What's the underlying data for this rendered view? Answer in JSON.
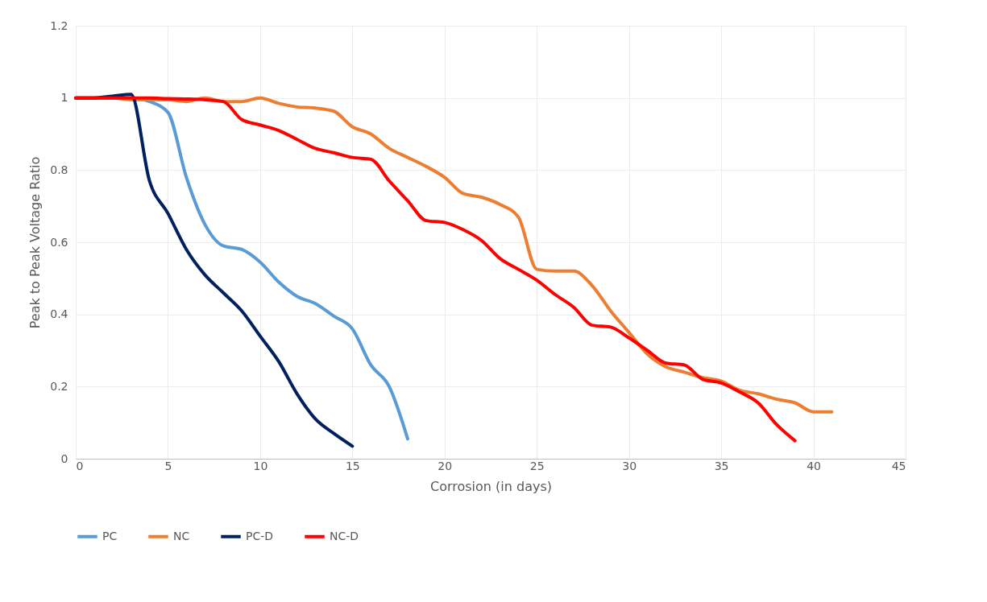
{
  "chart_data": {
    "type": "line",
    "xlabel": "Corrosion (in days)",
    "ylabel": "Peak to Peak Voltage Ratio",
    "xlim": [
      0,
      45
    ],
    "xticks": [
      0,
      5,
      10,
      15,
      20,
      25,
      30,
      35,
      40,
      45
    ],
    "ylim": [
      0,
      1.2
    ],
    "yticks": [
      0,
      0.2,
      0.4,
      0.6,
      0.8,
      1,
      1.2
    ],
    "grid": true,
    "legend": "bottom",
    "line_style": "solid",
    "marker": "none",
    "series": [
      {
        "name": "PC",
        "color": "#5b9bd5",
        "x": [
          0,
          1,
          2,
          3,
          4,
          5,
          6,
          7,
          8,
          9,
          10,
          11,
          12,
          13,
          14,
          15,
          16,
          17,
          18
        ],
        "values": [
          1,
          1,
          1,
          1,
          0.99,
          0.96,
          0.78,
          0.65,
          0.59,
          0.58,
          0.545,
          0.49,
          0.45,
          0.43,
          0.395,
          0.36,
          0.26,
          0.2,
          0.055
        ]
      },
      {
        "name": "NC",
        "color": "#ed7d31",
        "x": [
          0,
          1,
          2,
          3,
          4,
          5,
          6,
          7,
          8,
          9,
          10,
          11,
          12,
          13,
          14,
          15,
          16,
          17,
          18,
          19,
          20,
          21,
          22,
          23,
          24,
          25,
          26,
          27,
          28,
          29,
          30,
          31,
          32,
          33,
          34,
          35,
          36,
          37,
          38,
          39,
          40,
          41
        ],
        "values": [
          1,
          1,
          1,
          0.995,
          0.995,
          0.995,
          0.99,
          1,
          0.99,
          0.99,
          1,
          0.985,
          0.975,
          0.972,
          0.963,
          0.92,
          0.9,
          0.86,
          0.835,
          0.81,
          0.78,
          0.735,
          0.725,
          0.705,
          0.67,
          0.525,
          0.52,
          0.52,
          0.48,
          0.41,
          0.35,
          0.29,
          0.255,
          0.24,
          0.225,
          0.215,
          0.19,
          0.18,
          0.165,
          0.155,
          0.13,
          0.13
        ]
      },
      {
        "name": "PC-D",
        "color": "#002060",
        "x": [
          0,
          1,
          2,
          3,
          4,
          5,
          6,
          7,
          8,
          9,
          10,
          11,
          12,
          13,
          14,
          15
        ],
        "values": [
          1,
          1,
          1.005,
          1.01,
          0.77,
          0.68,
          0.58,
          0.51,
          0.46,
          0.41,
          0.34,
          0.27,
          0.18,
          0.11,
          0.07,
          0.035
        ]
      },
      {
        "name": "NC-D",
        "color": "#ff0000",
        "x": [
          0,
          1,
          2,
          3,
          4,
          5,
          6,
          7,
          8,
          9,
          10,
          11,
          12,
          13,
          14,
          15,
          16,
          17,
          18,
          19,
          20,
          21,
          22,
          23,
          24,
          25,
          26,
          27,
          28,
          29,
          30,
          31,
          32,
          33,
          34,
          35,
          36,
          37,
          38,
          39
        ],
        "values": [
          1,
          1,
          1,
          1,
          1,
          0.998,
          0.997,
          0.995,
          0.99,
          0.94,
          0.925,
          0.91,
          0.885,
          0.86,
          0.848,
          0.835,
          0.83,
          0.77,
          0.715,
          0.66,
          0.655,
          0.635,
          0.605,
          0.555,
          0.525,
          0.495,
          0.455,
          0.42,
          0.37,
          0.365,
          0.335,
          0.3,
          0.265,
          0.26,
          0.22,
          0.21,
          0.185,
          0.155,
          0.095,
          0.05
        ]
      }
    ]
  }
}
